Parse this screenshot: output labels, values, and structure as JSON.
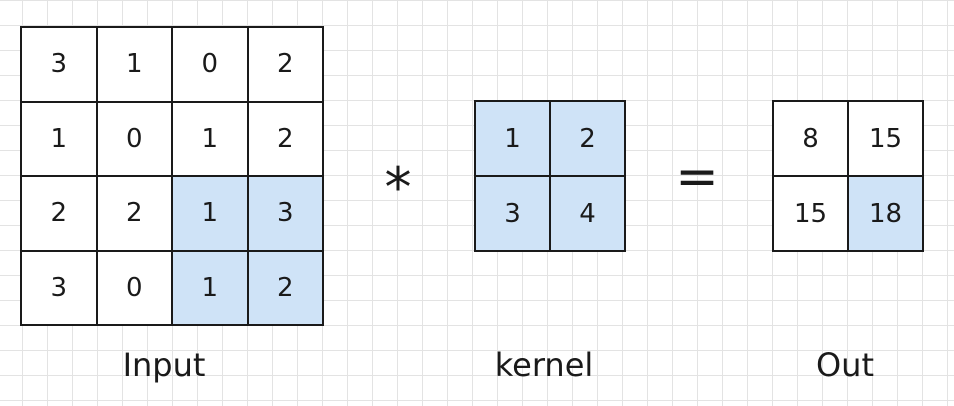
{
  "input": {
    "label": "Input",
    "cells": [
      [
        {
          "v": "3"
        },
        {
          "v": "1"
        },
        {
          "v": "0"
        },
        {
          "v": "2"
        }
      ],
      [
        {
          "v": "1"
        },
        {
          "v": "0"
        },
        {
          "v": "1"
        },
        {
          "v": "2"
        }
      ],
      [
        {
          "v": "2"
        },
        {
          "v": "2"
        },
        {
          "v": "1",
          "hl": true
        },
        {
          "v": "3",
          "hl": true
        }
      ],
      [
        {
          "v": "3"
        },
        {
          "v": "0"
        },
        {
          "v": "1",
          "hl": true
        },
        {
          "v": "2",
          "hl": true
        }
      ]
    ]
  },
  "operator_multiply": "*",
  "kernel": {
    "label": "kernel",
    "cells": [
      [
        {
          "v": "1",
          "hl": true
        },
        {
          "v": "2",
          "hl": true
        }
      ],
      [
        {
          "v": "3",
          "hl": true
        },
        {
          "v": "4",
          "hl": true
        }
      ]
    ]
  },
  "operator_equals": "=",
  "out": {
    "label": "Out",
    "cells": [
      [
        {
          "v": "8"
        },
        {
          "v": "15"
        }
      ],
      [
        {
          "v": "15"
        },
        {
          "v": "18",
          "hl": true
        }
      ]
    ]
  },
  "colors": {
    "highlight": "#cfe3f7",
    "grid_line": "#e3e3e3",
    "border": "#1a1a1a"
  }
}
